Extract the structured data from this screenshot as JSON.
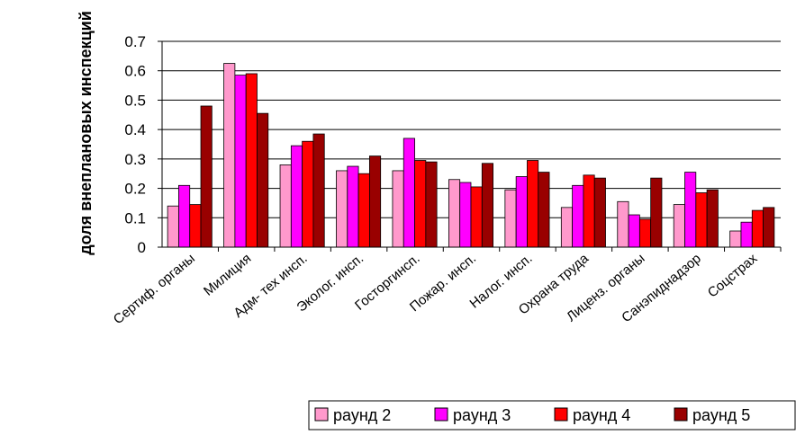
{
  "chart_data": {
    "type": "bar",
    "ylabel": "доля внеплановых инспекций",
    "xlabel": "",
    "ylim": [
      0,
      0.7
    ],
    "yticks": [
      "0",
      "0.1",
      "0.2",
      "0.3",
      "0.4",
      "0.5",
      "0.6",
      "0.7"
    ],
    "grid": true,
    "legend_position": "bottom-right",
    "categories": [
      "Сертиф. органы",
      "Милиция",
      "Адм- тех инсп.",
      "Эколог. инсп.",
      "Госторгинсп.",
      "Пожар. инсп.",
      "Налог. инсп.",
      "Охрана труда",
      "Лиценз. органы",
      "Санэпиднадзор",
      "Соцстрах"
    ],
    "series": [
      {
        "name": "раунд 2",
        "color": "#ff99cc",
        "values": [
          0.14,
          0.625,
          0.28,
          0.26,
          0.26,
          0.23,
          0.195,
          0.135,
          0.155,
          0.145,
          0.055
        ]
      },
      {
        "name": "раунд 3",
        "color": "#ff00ff",
        "values": [
          0.21,
          0.585,
          0.345,
          0.275,
          0.37,
          0.22,
          0.24,
          0.21,
          0.11,
          0.255,
          0.085
        ]
      },
      {
        "name": "раунд 4",
        "color": "#ff0000",
        "values": [
          0.145,
          0.59,
          0.36,
          0.25,
          0.295,
          0.205,
          0.295,
          0.245,
          0.095,
          0.185,
          0.125
        ]
      },
      {
        "name": "раунд 5",
        "color": "#990000",
        "values": [
          0.48,
          0.455,
          0.385,
          0.31,
          0.29,
          0.285,
          0.255,
          0.235,
          0.235,
          0.195,
          0.135
        ]
      }
    ]
  }
}
